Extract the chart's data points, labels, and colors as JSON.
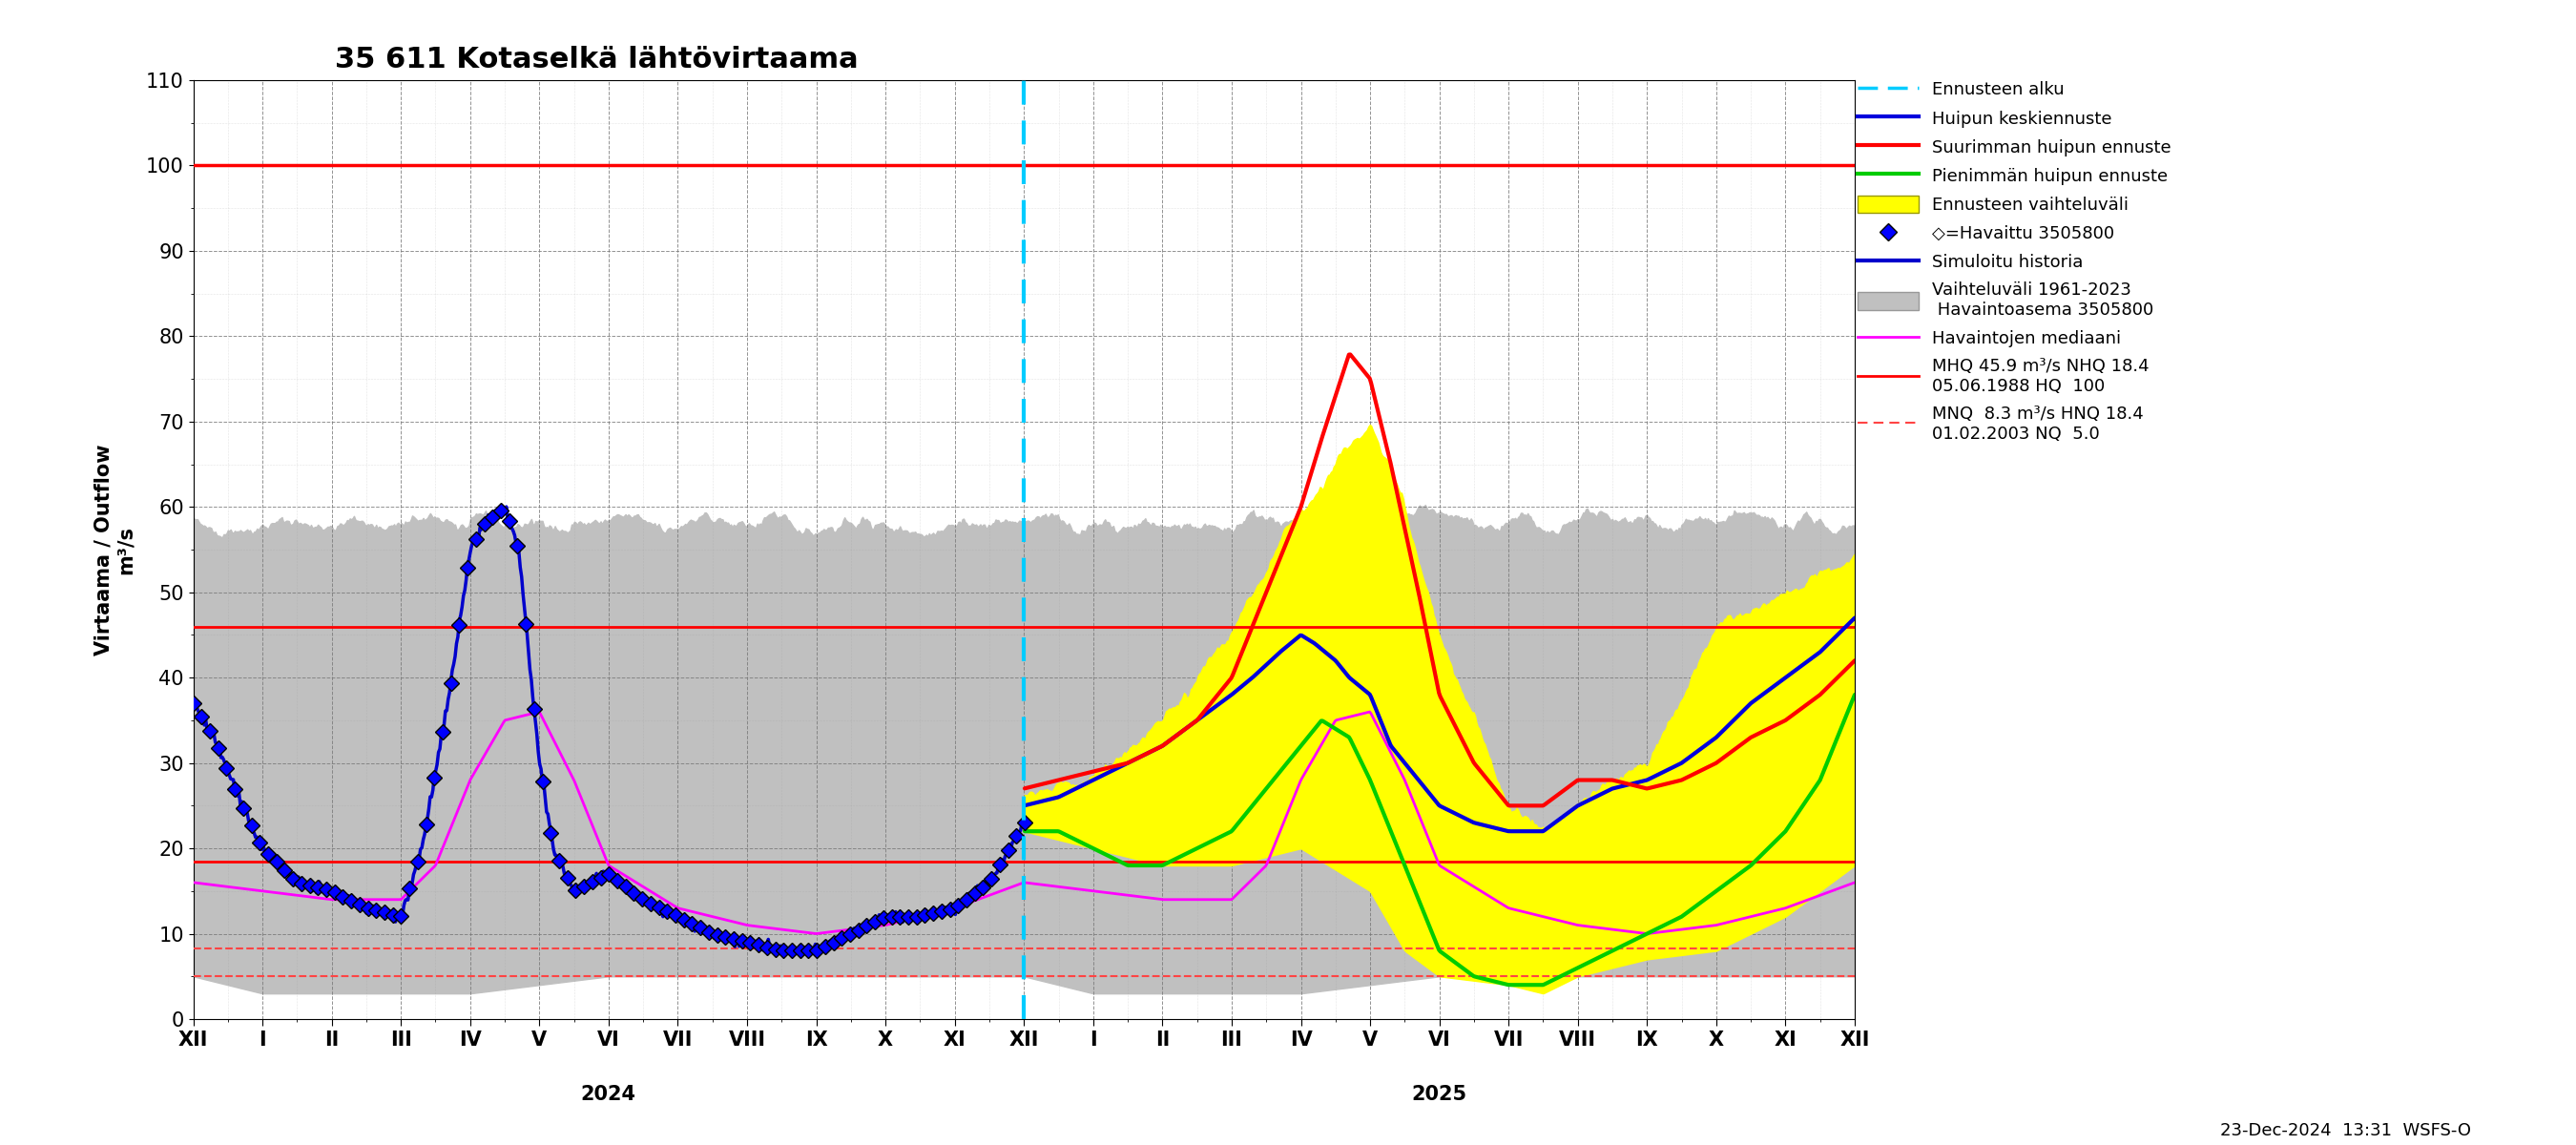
{
  "title": "35 611 Kotaselkä lähtövirtaama",
  "ylabel1": "Virtaama / Outflow",
  "ylabel2": "m³/s",
  "xlabel_bottom": "23-Dec-2024  13:31  WSFS-O",
  "ylim": [
    0,
    110
  ],
  "yticks": [
    0,
    10,
    20,
    30,
    40,
    50,
    60,
    70,
    80,
    90,
    100,
    110
  ],
  "hline_MHQ": 45.9,
  "hline_MNQ": 8.3,
  "hline_HQ": 100,
  "hline_NQ": 5.0,
  "hline_NHQ": 18.4,
  "forecast_start_x": 12.0,
  "background_color": "#ffffff",
  "colors": {
    "grey_band": "#c0c0c0",
    "yellow_band": "#ffff00",
    "observed_marker": "#000000",
    "observed_fill": "#0000ff",
    "simulated_history": "#0000cc",
    "median": "#ff00ff",
    "peak_mean": "#0000dd",
    "peak_max": "#ff0000",
    "peak_min": "#00cc00",
    "forecast_line": "#00ccff",
    "hline_solid": "#ff0000",
    "hline_dashed": "#ff4444"
  },
  "x_tick_positions": [
    0,
    1,
    2,
    3,
    4,
    5,
    6,
    7,
    8,
    9,
    10,
    11,
    12,
    13,
    14,
    15,
    16,
    17,
    18,
    19,
    20,
    21,
    22,
    23,
    24
  ],
  "x_tick_labels": [
    "XII",
    "I",
    "II",
    "III",
    "IV",
    "V",
    "VI",
    "VII",
    "VIII",
    "IX",
    "X",
    "XI",
    "XII",
    "I",
    "II",
    "III",
    "IV",
    "V",
    "VI",
    "VII",
    "VIII",
    "IX",
    "X",
    "XI",
    "XII"
  ]
}
